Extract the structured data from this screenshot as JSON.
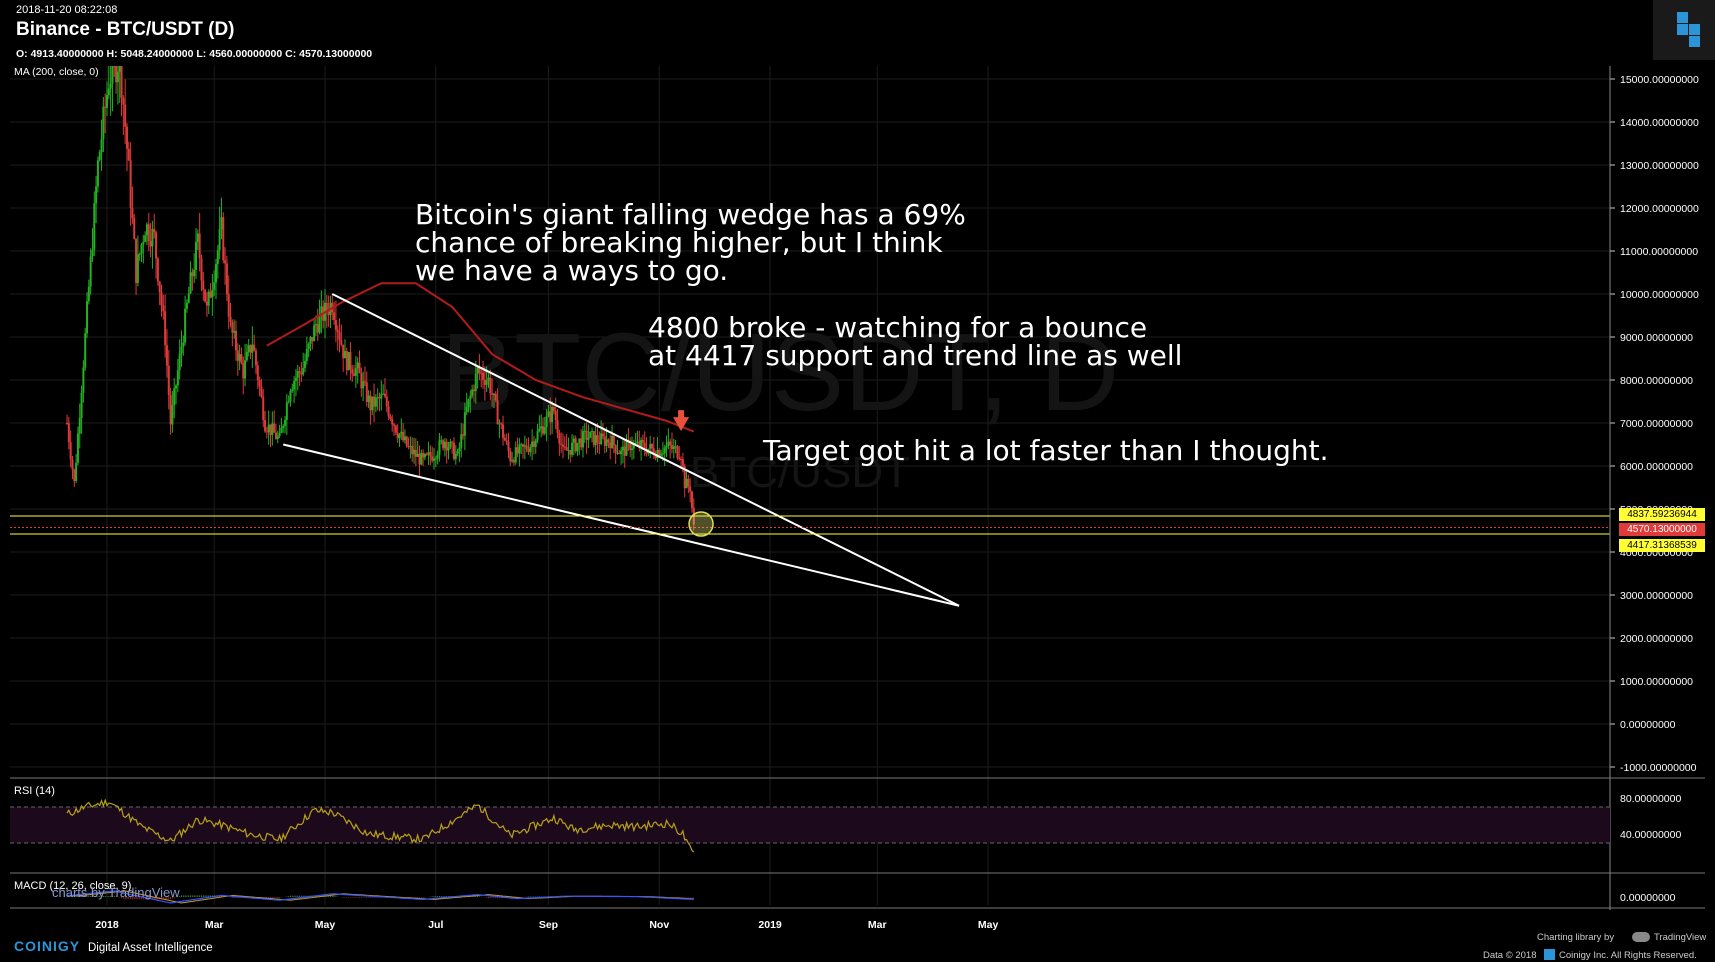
{
  "header": {
    "timestamp": "2018-11-20 08:22:08",
    "title": "Binance - BTC/USDT (D)",
    "ohlc": "O: 4913.40000000 H: 5048.24000000 L: 4560.00000000 C: 4570.13000000",
    "indicator": "MA (200, close, 0)"
  },
  "watermark": {
    "main": "BTC/USDT, D",
    "sub": "BTC/USDT"
  },
  "annotations": {
    "note1": "Bitcoin's giant falling wedge has a 69%\nchance of breaking higher, but I think\nwe have a ways to go.",
    "note2": "4800 broke - watching for a bounce\nat 4417 support and trend line as well",
    "note3": "Target got hit a lot faster than I thought."
  },
  "price_tags": {
    "upper": "4837.59236944",
    "current": "4570.13000000",
    "lower": "4417.31368539"
  },
  "rsi": {
    "label": "RSI (14)"
  },
  "macd": {
    "label": "MACD (12, 26, close, 9)",
    "overlay": "charts by TradingView"
  },
  "footer": {
    "brand": "COINIGY",
    "tagline": "Digital Asset Intelligence",
    "charting": "Charting library by",
    "tv": "TradingView",
    "copyright": "Data © 2018",
    "copyright2": "Coinigy Inc. All Rights Reserved."
  },
  "colors": {
    "up": "#22b222",
    "down": "#e03a3a",
    "ma": "#b31b1b",
    "level": "#ffff33",
    "current": "#e03a3a",
    "rsi": "#b8a21a",
    "macd": "#3355ff",
    "signal": "#c89a28"
  },
  "chart_data": {
    "type": "candlestick",
    "title": "Binance - BTC/USDT (D)",
    "x_ticks": [
      "2018",
      "Mar",
      "May",
      "Jul",
      "Sep",
      "Nov",
      "2019",
      "Mar",
      "May"
    ],
    "y_ticks": [
      "15000.00000000",
      "14000.00000000",
      "13000.00000000",
      "12000.00000000",
      "11000.00000000",
      "10000.00000000",
      "9000.00000000",
      "8000.00000000",
      "7000.00000000",
      "6000.00000000",
      "5000.00000000",
      "4000.00000000",
      "3000.00000000",
      "2000.00000000",
      "1000.00000000",
      "0.00000000",
      "-1000.00000000"
    ],
    "ylim": [
      -1000,
      15000
    ],
    "price_path": [
      [
        "2017-12-10",
        7000
      ],
      [
        "2017-12-14",
        5600
      ],
      [
        "2017-12-20",
        9000
      ],
      [
        "2017-12-27",
        13000
      ],
      [
        "2018-01-02",
        15000
      ],
      [
        "2018-01-08",
        15500
      ],
      [
        "2018-01-12",
        13400
      ],
      [
        "2018-01-17",
        10500
      ],
      [
        "2018-01-22",
        11600
      ],
      [
        "2018-01-27",
        11300
      ],
      [
        "2018-02-02",
        9000
      ],
      [
        "2018-02-05",
        7000
      ],
      [
        "2018-02-09",
        8200
      ],
      [
        "2018-02-15",
        10000
      ],
      [
        "2018-02-20",
        11200
      ],
      [
        "2018-02-25",
        9600
      ],
      [
        "2018-03-05",
        11500
      ],
      [
        "2018-03-10",
        9200
      ],
      [
        "2018-03-17",
        8200
      ],
      [
        "2018-03-22",
        8900
      ],
      [
        "2018-03-29",
        7000
      ],
      [
        "2018-04-06",
        6600
      ],
      [
        "2018-04-12",
        7900
      ],
      [
        "2018-04-19",
        8300
      ],
      [
        "2018-04-26",
        9300
      ],
      [
        "2018-05-05",
        9800
      ],
      [
        "2018-05-12",
        8500
      ],
      [
        "2018-05-19",
        8200
      ],
      [
        "2018-05-26",
        7400
      ],
      [
        "2018-06-02",
        7600
      ],
      [
        "2018-06-10",
        6800
      ],
      [
        "2018-06-16",
        6400
      ],
      [
        "2018-06-24",
        6100
      ],
      [
        "2018-06-30",
        6300
      ],
      [
        "2018-07-06",
        6600
      ],
      [
        "2018-07-13",
        6200
      ],
      [
        "2018-07-18",
        7300
      ],
      [
        "2018-07-24",
        8200
      ],
      [
        "2018-07-30",
        8000
      ],
      [
        "2018-08-05",
        7000
      ],
      [
        "2018-08-11",
        6200
      ],
      [
        "2018-08-15",
        6300
      ],
      [
        "2018-08-22",
        6500
      ],
      [
        "2018-08-30",
        7000
      ],
      [
        "2018-09-04",
        7300
      ],
      [
        "2018-09-09",
        6300
      ],
      [
        "2018-09-16",
        6500
      ],
      [
        "2018-09-22",
        6700
      ],
      [
        "2018-09-28",
        6600
      ],
      [
        "2018-10-05",
        6600
      ],
      [
        "2018-10-11",
        6300
      ],
      [
        "2018-10-16",
        6500
      ],
      [
        "2018-10-23",
        6450
      ],
      [
        "2018-10-30",
        6350
      ],
      [
        "2018-11-06",
        6450
      ],
      [
        "2018-11-13",
        6300
      ],
      [
        "2018-11-15",
        5600
      ],
      [
        "2018-11-18",
        5500
      ],
      [
        "2018-11-20",
        4570
      ]
    ],
    "ma200_path": [
      [
        "2018-03-30",
        8800
      ],
      [
        "2018-04-20",
        9300
      ],
      [
        "2018-05-10",
        9800
      ],
      [
        "2018-06-01",
        10250
      ],
      [
        "2018-06-20",
        10250
      ],
      [
        "2018-07-10",
        9700
      ],
      [
        "2018-08-01",
        8600
      ],
      [
        "2018-08-25",
        8000
      ],
      [
        "2018-09-20",
        7600
      ],
      [
        "2018-10-15",
        7300
      ],
      [
        "2018-11-05",
        7050
      ],
      [
        "2018-11-20",
        6800
      ]
    ],
    "trendlines": [
      {
        "name": "wedge-upper",
        "from": [
          "2018-05-05",
          10000
        ],
        "to": [
          "2019-04-15",
          2750
        ]
      },
      {
        "name": "wedge-lower",
        "from": [
          "2018-04-08",
          6500
        ],
        "to": [
          "2019-04-15",
          2750
        ]
      }
    ],
    "levels": [
      4837.59236944,
      4570.13,
      4417.31368539
    ],
    "rsi": {
      "ylim": [
        0,
        100
      ],
      "y_ticks": [
        "80.00000000",
        "40.00000000"
      ],
      "overbought": 70,
      "oversold": 30,
      "path": [
        [
          "2017-12-10",
          62
        ],
        [
          "2017-12-20",
          70
        ],
        [
          "2018-01-02",
          76
        ],
        [
          "2018-01-10",
          64
        ],
        [
          "2018-01-20",
          48
        ],
        [
          "2018-02-05",
          32
        ],
        [
          "2018-02-20",
          56
        ],
        [
          "2018-03-05",
          50
        ],
        [
          "2018-03-20",
          40
        ],
        [
          "2018-04-06",
          34
        ],
        [
          "2018-04-25",
          66
        ],
        [
          "2018-05-05",
          64
        ],
        [
          "2018-05-25",
          40
        ],
        [
          "2018-06-24",
          34
        ],
        [
          "2018-07-05",
          48
        ],
        [
          "2018-07-24",
          72
        ],
        [
          "2018-08-11",
          38
        ],
        [
          "2018-09-04",
          58
        ],
        [
          "2018-09-15",
          45
        ],
        [
          "2018-10-05",
          50
        ],
        [
          "2018-10-20",
          48
        ],
        [
          "2018-11-06",
          52
        ],
        [
          "2018-11-14",
          40
        ],
        [
          "2018-11-17",
          26
        ],
        [
          "2018-11-20",
          18
        ]
      ]
    },
    "macd": {
      "y_ticks": [
        "0.00000000"
      ],
      "path": [
        [
          "2017-12-10",
          0.3
        ],
        [
          "2018-01-05",
          1.5
        ],
        [
          "2018-02-05",
          -1.5
        ],
        [
          "2018-03-05",
          0.4
        ],
        [
          "2018-04-06",
          -0.8
        ],
        [
          "2018-05-05",
          0.8
        ],
        [
          "2018-06-24",
          -0.6
        ],
        [
          "2018-07-24",
          0.6
        ],
        [
          "2018-08-15",
          -0.4
        ],
        [
          "2018-09-10",
          0.2
        ],
        [
          "2018-10-20",
          0.1
        ],
        [
          "2018-11-20",
          -0.6
        ]
      ]
    }
  }
}
